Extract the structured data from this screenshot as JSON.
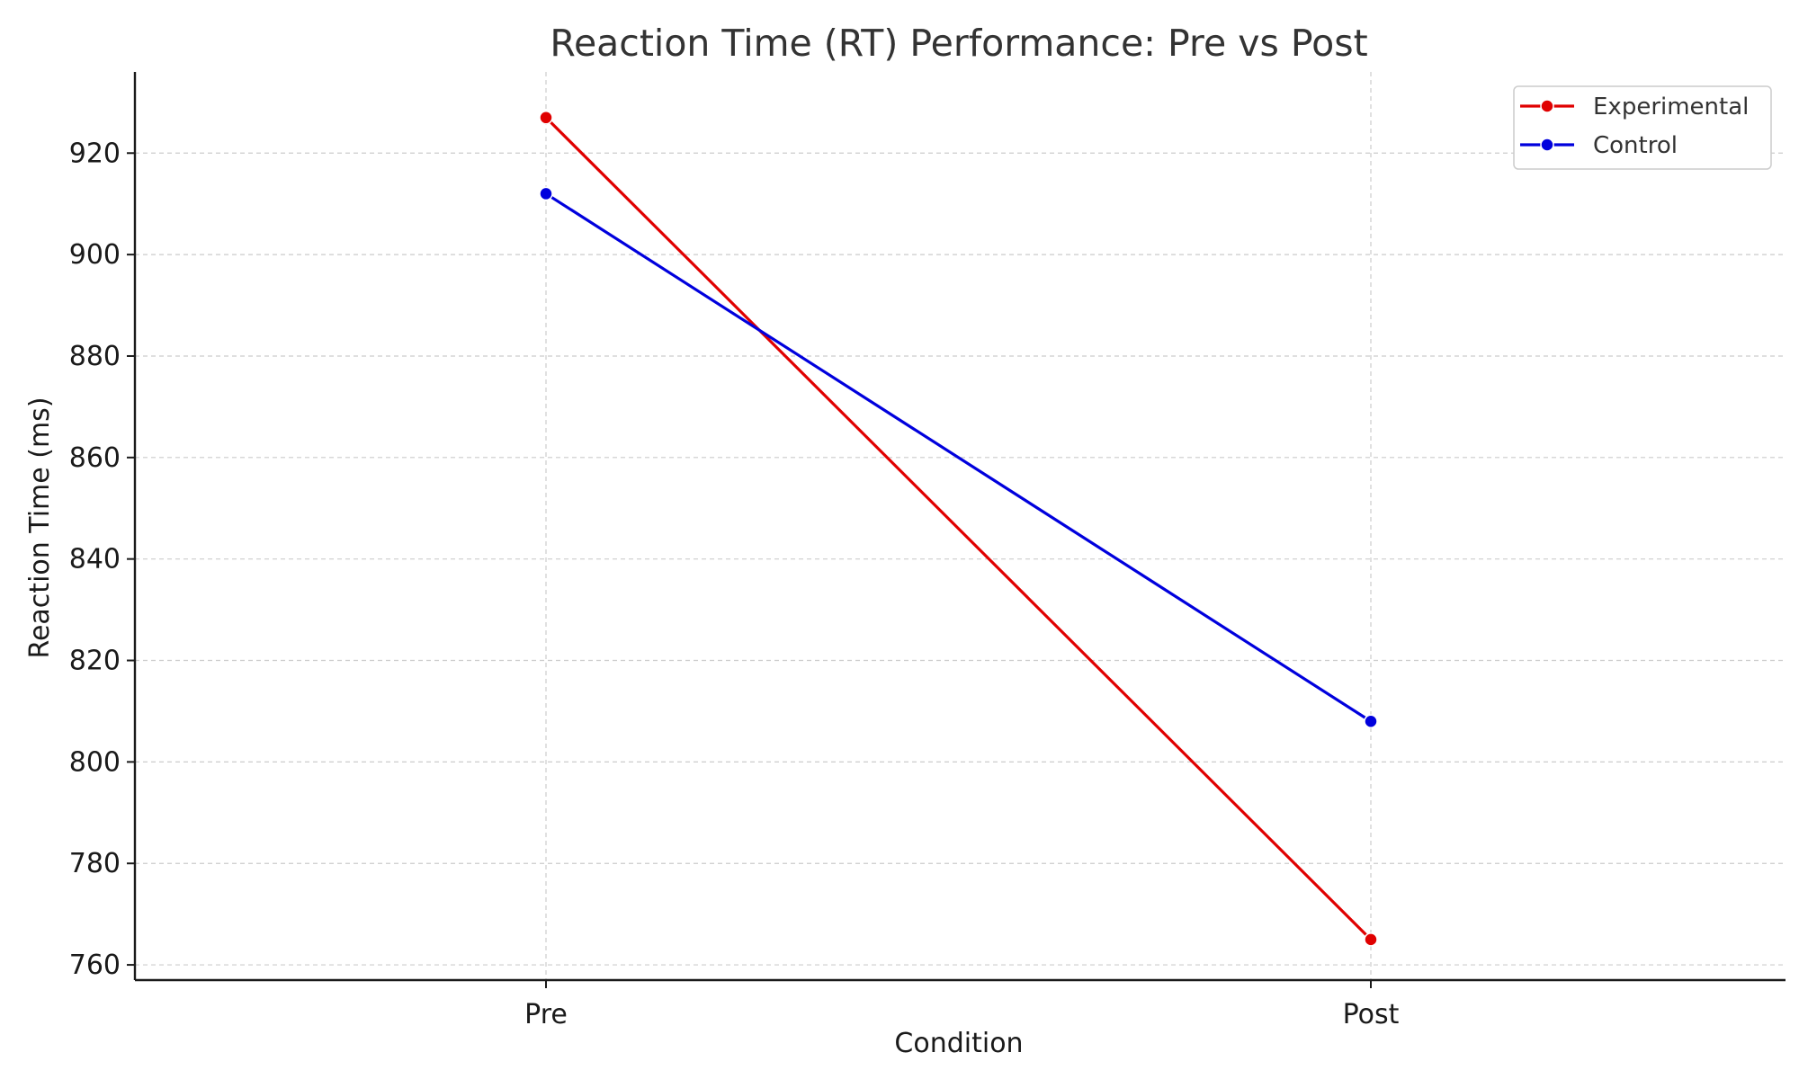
{
  "chart_data": {
    "type": "line",
    "title": "Reaction Time (RT) Performance: Pre vs Post",
    "xlabel": "Condition",
    "ylabel": "Reaction Time (ms)",
    "categories": [
      "Pre",
      "Post"
    ],
    "ylim": [
      757,
      936
    ],
    "yticks": [
      760,
      780,
      800,
      820,
      840,
      860,
      880,
      900,
      920
    ],
    "grid": true,
    "legend_position": "top-right",
    "series": [
      {
        "name": "Experimental",
        "color": "#e00000",
        "values": [
          927,
          765
        ]
      },
      {
        "name": "Control",
        "color": "#0000dd",
        "values": [
          912,
          808
        ]
      }
    ]
  }
}
